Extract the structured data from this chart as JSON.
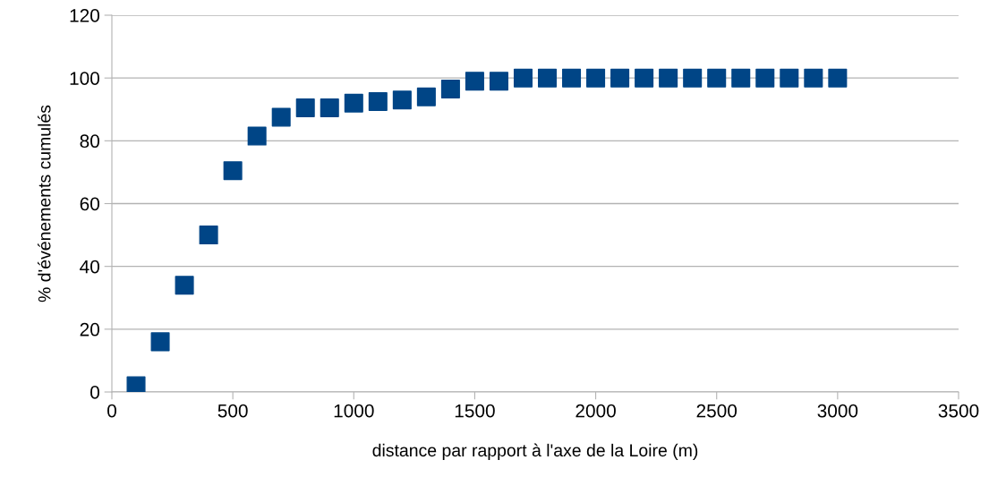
{
  "chart_data": {
    "type": "scatter",
    "xlabel": "distance par rapport à l'axe de la Loire (m)",
    "ylabel": "% d'événements cumulés",
    "x": [
      100,
      200,
      300,
      400,
      500,
      600,
      700,
      800,
      900,
      1000,
      1100,
      1200,
      1300,
      1400,
      1500,
      1600,
      1700,
      1800,
      1900,
      2000,
      2100,
      2200,
      2300,
      2400,
      2500,
      2600,
      2700,
      2800,
      2900,
      3000
    ],
    "series": [
      {
        "color": "#004586",
        "values": [
          2,
          16,
          34,
          50,
          70.5,
          81.5,
          87.5,
          90.5,
          90.5,
          92,
          92.5,
          93,
          94,
          96.5,
          99,
          99,
          100,
          100,
          100,
          100,
          100,
          100,
          100,
          100,
          100,
          100,
          100,
          100,
          100,
          100
        ]
      }
    ],
    "xlim": [
      0,
      3500
    ],
    "xticks": [
      0,
      500,
      1000,
      1500,
      2000,
      2500,
      3000,
      3500
    ],
    "ylim": [
      0,
      120
    ],
    "yticks": [
      0,
      20,
      40,
      60,
      80,
      100,
      120
    ],
    "grid": "y",
    "marker": "square",
    "legend": false
  }
}
